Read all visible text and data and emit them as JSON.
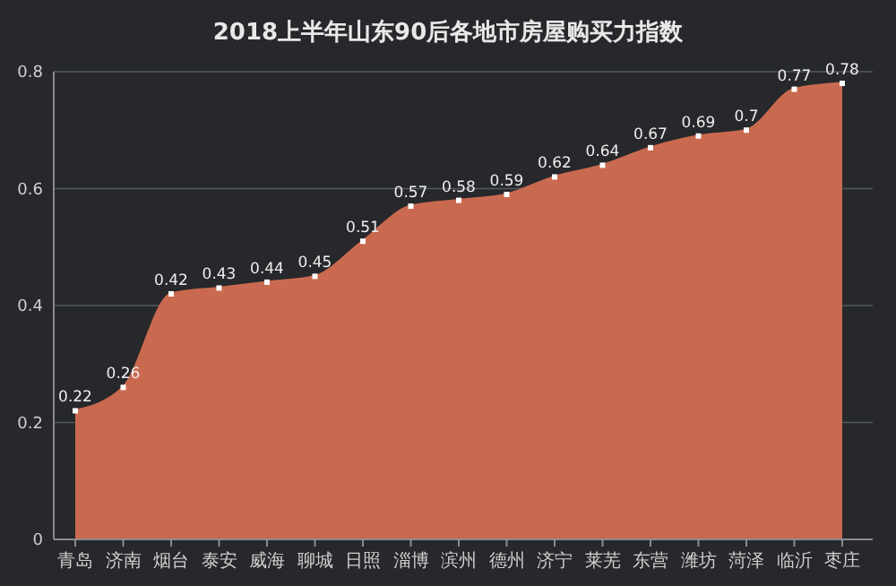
{
  "chart_data": {
    "type": "area",
    "title": "2018上半年山东90后各地市房屋购买力指数",
    "categories": [
      "青岛",
      "济南",
      "烟台",
      "泰安",
      "威海",
      "聊城",
      "日照",
      "淄博",
      "滨州",
      "德州",
      "济宁",
      "莱芜",
      "东营",
      "潍坊",
      "菏泽",
      "临沂",
      "枣庄"
    ],
    "values": [
      0.22,
      0.26,
      0.42,
      0.43,
      0.44,
      0.45,
      0.51,
      0.57,
      0.58,
      0.59,
      0.62,
      0.64,
      0.67,
      0.69,
      0.7,
      0.77,
      0.78
    ],
    "color": "#c96a50",
    "ylim": [
      0,
      0.8
    ],
    "yticks": [
      0,
      0.2,
      0.4,
      0.6,
      0.8
    ],
    "grid": "y",
    "data_labels": true,
    "marker": "square"
  }
}
